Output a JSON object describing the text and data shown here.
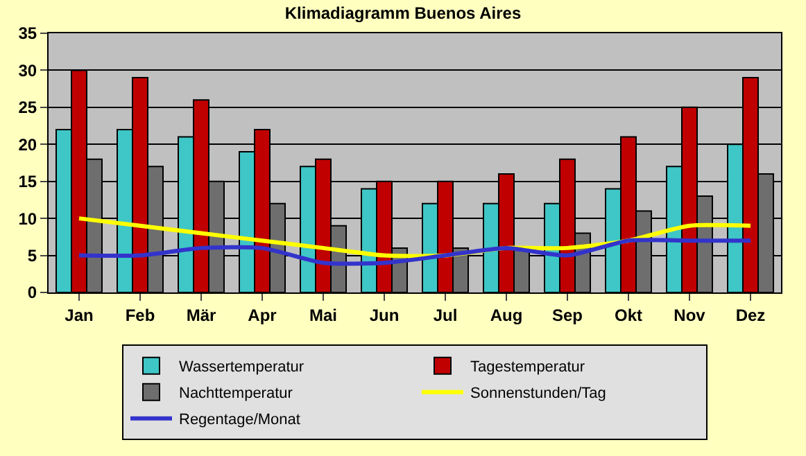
{
  "chart_data": {
    "type": "bar",
    "title": "Klimadiagramm Buenos Aires",
    "categories": [
      "Jan",
      "Feb",
      "Mär",
      "Apr",
      "Mai",
      "Jun",
      "Jul",
      "Aug",
      "Sep",
      "Okt",
      "Nov",
      "Dez"
    ],
    "series": [
      {
        "name": "Wassertemperatur",
        "color": "#3fc6c6",
        "values": [
          22,
          22,
          21,
          19,
          17,
          14,
          12,
          12,
          12,
          14,
          17,
          20
        ]
      },
      {
        "name": "Tagestemperatur",
        "color": "#c00000",
        "values": [
          30,
          29,
          26,
          22,
          18,
          15,
          15,
          16,
          18,
          21,
          25,
          29
        ]
      },
      {
        "name": "Nachttemperatur",
        "color": "#6e6e6e",
        "values": [
          18,
          17,
          15,
          12,
          9,
          6,
          6,
          6,
          8,
          11,
          13,
          16
        ]
      },
      {
        "name": "Sonnenstunden/Tag",
        "type": "line",
        "color": "#ffff00",
        "values": [
          10,
          9,
          8,
          7,
          6,
          5,
          5,
          6,
          6,
          7,
          9,
          9
        ]
      },
      {
        "name": "Regentage/Monat",
        "type": "line",
        "color": "#3333cc",
        "values": [
          5,
          5,
          6,
          6,
          4,
          4,
          5,
          6,
          5,
          7,
          7,
          7
        ]
      }
    ],
    "ylim": [
      0,
      35
    ],
    "yticks": [
      0,
      5,
      10,
      15,
      20,
      25,
      30,
      35
    ],
    "grid": "y",
    "legend": "bottom",
    "marker": "none",
    "line_style": "solid"
  }
}
